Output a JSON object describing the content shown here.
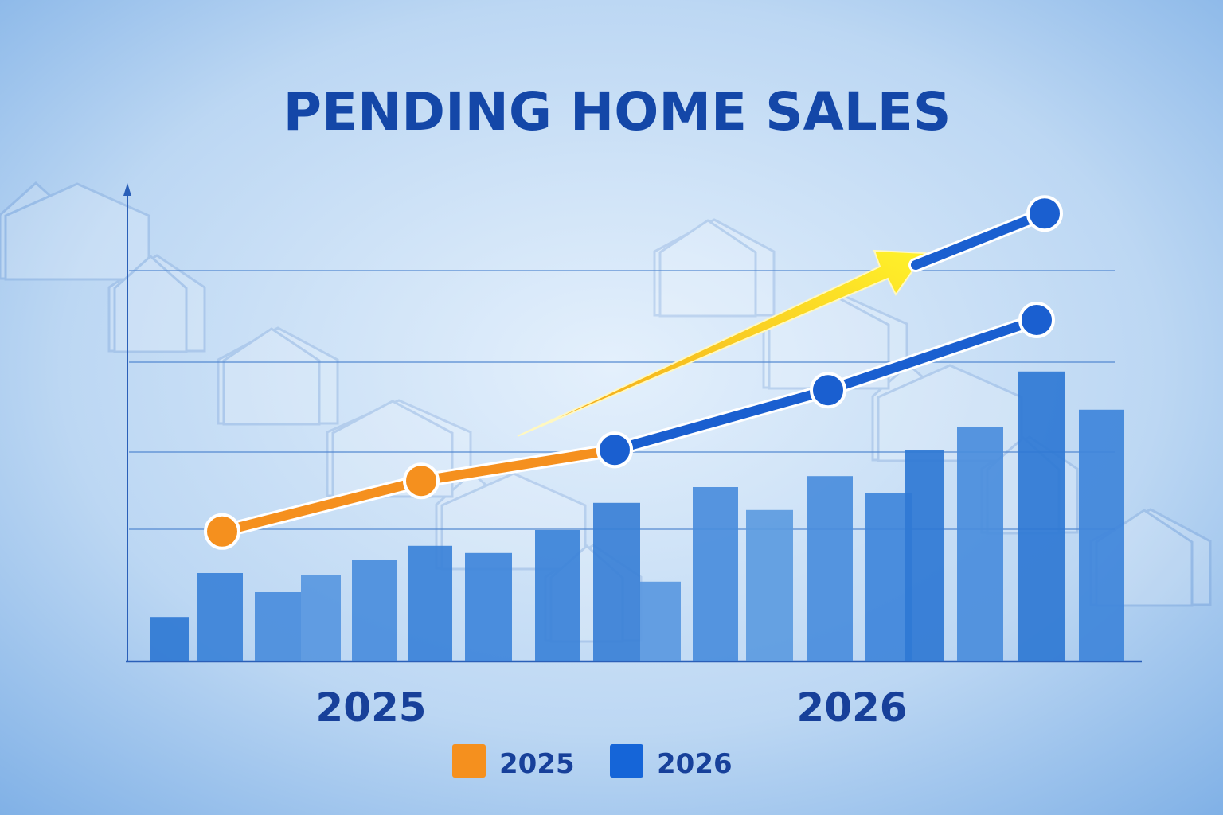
{
  "chart_data": {
    "type": "bar",
    "title": "PENDING HOME SALES",
    "xlabel": "",
    "ylabel": "",
    "x_group_labels": [
      "2025",
      "2026"
    ],
    "ylim": [
      0,
      100
    ],
    "grid": true,
    "legend": {
      "placement": "bottom-center",
      "entries": [
        {
          "label": "2025",
          "color": "#f5901e"
        },
        {
          "label": "2026",
          "color": "#1565d8"
        }
      ]
    },
    "bars": [
      9.3,
      18.5,
      14.5,
      18,
      21.3,
      24.2,
      22.7,
      27.5,
      33.2,
      16.7,
      36.5,
      31.7,
      38.8,
      35.3,
      44.2,
      49,
      60.7,
      52.7
    ],
    "line_series": [
      {
        "legend": "2025",
        "color": "#f5901e",
        "values": [
          27.2,
          37.8,
          44.3
        ]
      },
      {
        "legend": "2026",
        "color": "#1a5fd0",
        "values": [
          44.3,
          56.8,
          71.5
        ]
      },
      {
        "legend": "2026",
        "color": "#1a5fd0",
        "values": [
          83,
          93.8
        ]
      }
    ],
    "annotation": {
      "type": "trend-arrow",
      "color": "#f7d21e"
    }
  }
}
